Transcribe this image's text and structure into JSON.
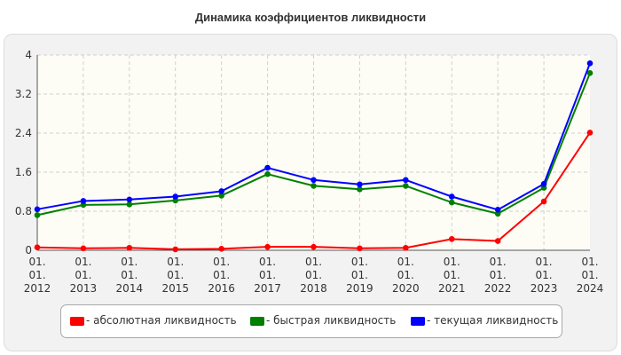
{
  "chart_data": {
    "type": "line",
    "title": "Динамика коэффициентов ликвидности",
    "xlabel": "",
    "ylabel": "",
    "categories": [
      [
        "01.",
        "01.",
        "2012"
      ],
      [
        "01.",
        "01.",
        "2013"
      ],
      [
        "01.",
        "01.",
        "2014"
      ],
      [
        "01.",
        "01.",
        "2015"
      ],
      [
        "01.",
        "01.",
        "2016"
      ],
      [
        "01.",
        "01.",
        "2017"
      ],
      [
        "01.",
        "01.",
        "2018"
      ],
      [
        "01.",
        "01.",
        "2019"
      ],
      [
        "01.",
        "01.",
        "2020"
      ],
      [
        "01.",
        "01.",
        "2021"
      ],
      [
        "01.",
        "01.",
        "2022"
      ],
      [
        "01.",
        "01.",
        "2023"
      ],
      [
        "01.",
        "01.",
        "2024"
      ]
    ],
    "yticks": [
      "0",
      "0.8",
      "1.6",
      "2.4",
      "3.2",
      "4"
    ],
    "ylim": [
      0,
      4
    ],
    "grid": true,
    "legend_position": "bottom",
    "series": [
      {
        "name": "- абсолютная ликвидность",
        "color": "#ff0000",
        "values": [
          0.06,
          0.04,
          0.05,
          0.02,
          0.03,
          0.07,
          0.07,
          0.04,
          0.05,
          0.23,
          0.19,
          1.0,
          2.41
        ]
      },
      {
        "name": "- быстрая ликвидность",
        "color": "#008000",
        "values": [
          0.72,
          0.93,
          0.94,
          1.02,
          1.12,
          1.56,
          1.32,
          1.25,
          1.32,
          0.98,
          0.75,
          1.28,
          3.63
        ]
      },
      {
        "name": "- текущая ликвидность",
        "color": "#0000ff",
        "values": [
          0.84,
          1.01,
          1.04,
          1.1,
          1.21,
          1.69,
          1.44,
          1.35,
          1.44,
          1.1,
          0.83,
          1.36,
          3.83
        ]
      }
    ]
  }
}
